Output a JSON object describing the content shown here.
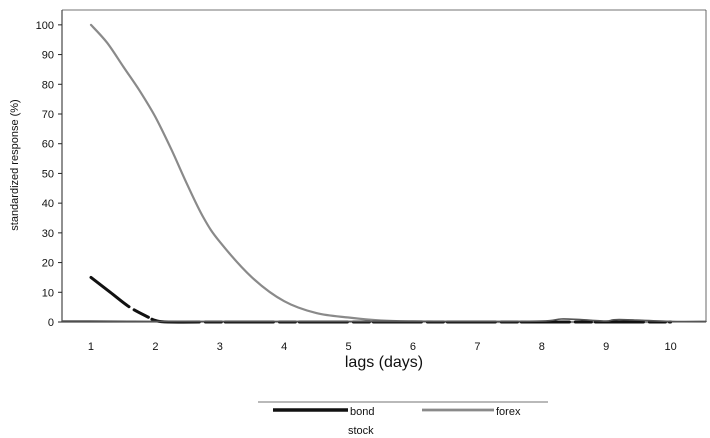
{
  "chart_data": {
    "type": "line",
    "title": "",
    "xlabel": "lags (days)",
    "ylabel": "standardized response (%)",
    "xlim": [
      0.55,
      10.55
    ],
    "ylim": [
      0,
      105
    ],
    "xticks": [
      "1",
      "2",
      "3",
      "4",
      "5",
      "6",
      "7",
      "8",
      "9",
      "10"
    ],
    "yticks": [
      "0",
      "10",
      "20",
      "30",
      "40",
      "50",
      "60",
      "70",
      "80",
      "90",
      "100"
    ],
    "grid": false,
    "legend_position": "bottom",
    "series": [
      {
        "name": "forex",
        "color": "#8a8a8a",
        "x": [
          1,
          1.25,
          1.5,
          1.75,
          2,
          2.25,
          2.5,
          2.75,
          3,
          3.5,
          4,
          4.5,
          5,
          5.5,
          6,
          7,
          8,
          9,
          10
        ],
        "y": [
          100,
          94,
          86,
          78,
          69,
          58,
          46,
          35,
          27,
          15,
          7,
          3,
          1.5,
          0.5,
          0.2,
          0,
          0,
          0,
          0
        ]
      },
      {
        "name": "bond",
        "color": "#111111",
        "x": [
          1,
          1.3,
          1.6,
          1.9,
          2,
          2.2,
          3,
          4,
          5,
          6,
          7,
          8,
          9,
          10
        ],
        "y": [
          15,
          10,
          5,
          1.5,
          0.5,
          0,
          0,
          0,
          0,
          0,
          0,
          0,
          0,
          0
        ]
      },
      {
        "name": "stock",
        "color": "#555555",
        "x": [
          0.55,
          1,
          2,
          3,
          4,
          5,
          6,
          7,
          8,
          8.3,
          8.6,
          9,
          9.2,
          10,
          10.55
        ],
        "y": [
          0.3,
          0.3,
          0.2,
          0.2,
          0.2,
          0.2,
          0.2,
          0.2,
          0.3,
          1,
          0.8,
          0.3,
          0.8,
          0.2,
          0.2
        ]
      }
    ]
  }
}
